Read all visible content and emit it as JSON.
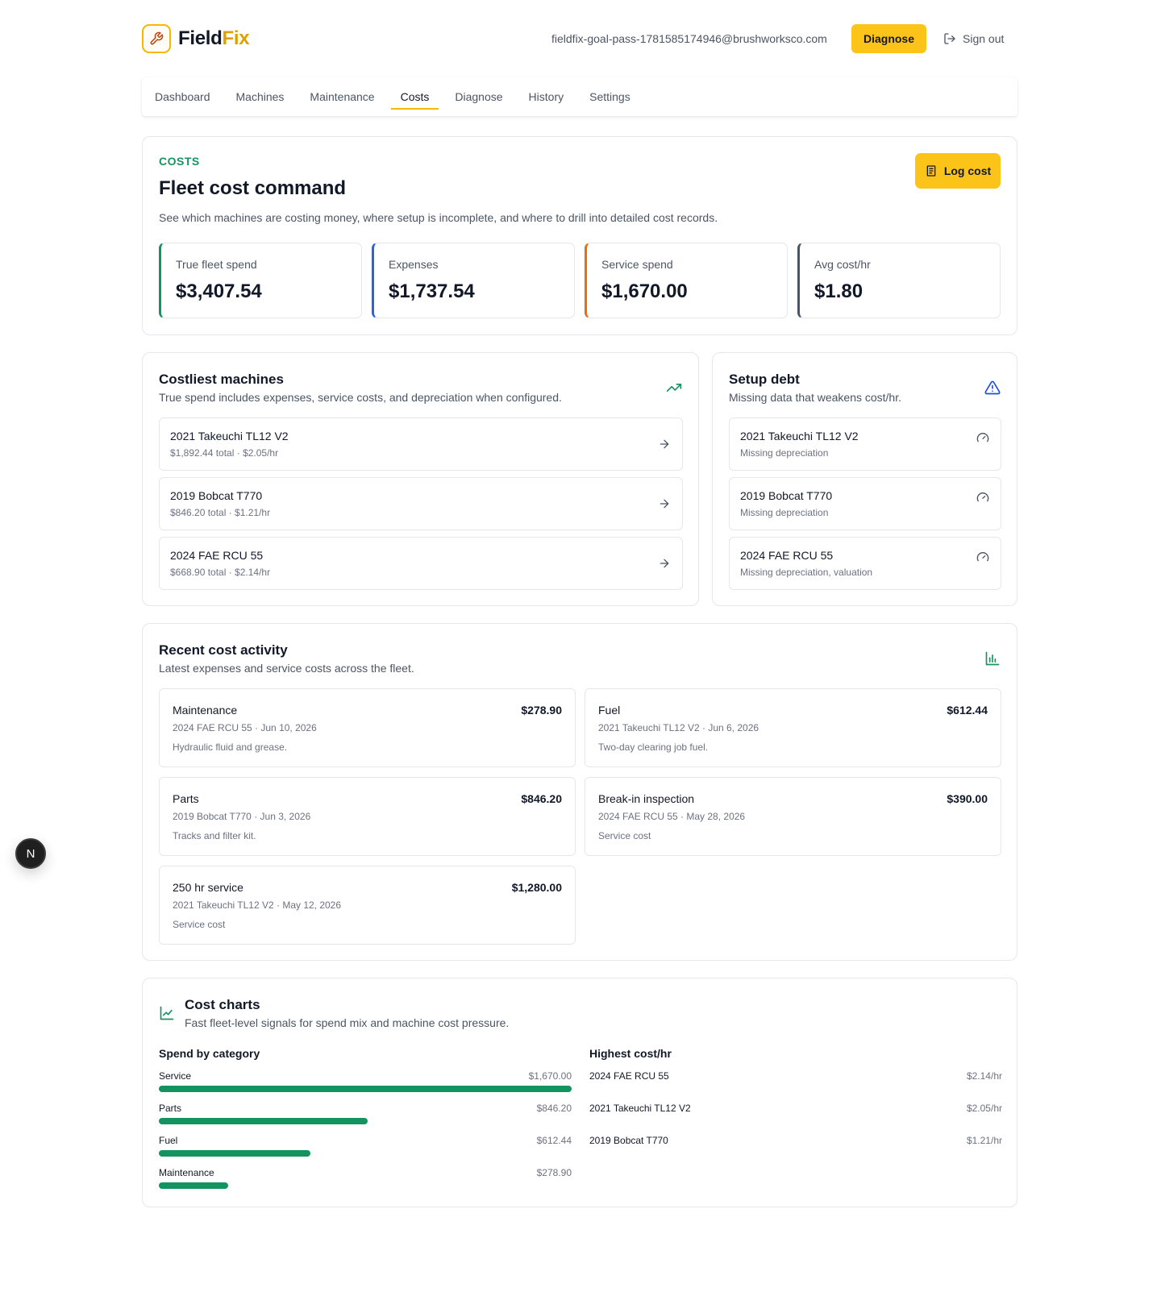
{
  "app": {
    "logo_main": "Field",
    "logo_accent": "Fix",
    "user_email": "fieldfix-goal-pass-1781585174946@brushworksco.com",
    "diagnose_button": "Diagnose",
    "sign_out": "Sign out"
  },
  "nav": {
    "items": [
      "Dashboard",
      "Machines",
      "Maintenance",
      "Costs",
      "Diagnose",
      "History",
      "Settings"
    ],
    "active": "Costs"
  },
  "overview": {
    "eyebrow": "COSTS",
    "title": "Fleet cost command",
    "subtitle": "See which machines are costing money, where setup is incomplete, and where to drill into detailed cost records.",
    "log_button": "Log cost",
    "stats": [
      {
        "label": "True fleet spend",
        "value": "$3,407.54",
        "accent": "#16935f"
      },
      {
        "label": "Expenses",
        "value": "$1,737.54",
        "accent": "#2563eb"
      },
      {
        "label": "Service spend",
        "value": "$1,670.00",
        "accent": "#ea6c0a"
      },
      {
        "label": "Avg cost/hr",
        "value": "$1.80",
        "accent": "#475569"
      }
    ]
  },
  "costliest": {
    "title": "Costliest machines",
    "subtitle": "True spend includes expenses, service costs, and depreciation when configured.",
    "items": [
      {
        "name": "2021 Takeuchi TL12 V2",
        "detail": "$1,892.44 total · $2.05/hr"
      },
      {
        "name": "2019 Bobcat T770",
        "detail": "$846.20 total · $1.21/hr"
      },
      {
        "name": "2024 FAE RCU 55",
        "detail": "$668.90 total · $2.14/hr"
      }
    ]
  },
  "setup_debt": {
    "title": "Setup debt",
    "subtitle": "Missing data that weakens cost/hr.",
    "items": [
      {
        "name": "2021 Takeuchi TL12 V2",
        "detail": "Missing depreciation"
      },
      {
        "name": "2019 Bobcat T770",
        "detail": "Missing depreciation"
      },
      {
        "name": "2024 FAE RCU 55",
        "detail": "Missing depreciation, valuation"
      }
    ]
  },
  "activity": {
    "title": "Recent cost activity",
    "subtitle": "Latest expenses and service costs across the fleet.",
    "items": [
      {
        "title": "Maintenance",
        "amount": "$278.90",
        "meta": "2024 FAE RCU 55 · Jun 10, 2026",
        "note": "Hydraulic fluid and grease."
      },
      {
        "title": "Fuel",
        "amount": "$612.44",
        "meta": "2021 Takeuchi TL12 V2 · Jun 6, 2026",
        "note": "Two-day clearing job fuel."
      },
      {
        "title": "Parts",
        "amount": "$846.20",
        "meta": "2019 Bobcat T770 · Jun 3, 2026",
        "note": "Tracks and filter kit."
      },
      {
        "title": "Break-in inspection",
        "amount": "$390.00",
        "meta": "2024 FAE RCU 55 · May 28, 2026",
        "note": "Service cost"
      },
      {
        "title": "250 hr service",
        "amount": "$1,280.00",
        "meta": "2021 Takeuchi TL12 V2 · May 12, 2026",
        "note": "Service cost"
      }
    ]
  },
  "charts": {
    "title": "Cost charts",
    "subtitle": "Fast fleet-level signals for spend mix and machine cost pressure.",
    "spend_title": "Spend by category",
    "cph_title": "Highest cost/hr",
    "bar_color": "#12935f"
  },
  "chart_data": [
    {
      "type": "bar",
      "title": "Spend by category",
      "categories": [
        "Service",
        "Parts",
        "Fuel",
        "Maintenance"
      ],
      "values": [
        1670.0,
        846.2,
        612.44,
        278.9
      ],
      "value_labels": [
        "$1,670.00",
        "$846.20",
        "$612.44",
        "$278.90"
      ]
    },
    {
      "type": "table",
      "title": "Highest cost/hr",
      "categories": [
        "2024 FAE RCU 55",
        "2021 Takeuchi TL12 V2",
        "2019 Bobcat T770"
      ],
      "values": [
        2.14,
        2.05,
        1.21
      ],
      "value_labels": [
        "$2.14/hr",
        "$2.05/hr",
        "$1.21/hr"
      ]
    }
  ]
}
